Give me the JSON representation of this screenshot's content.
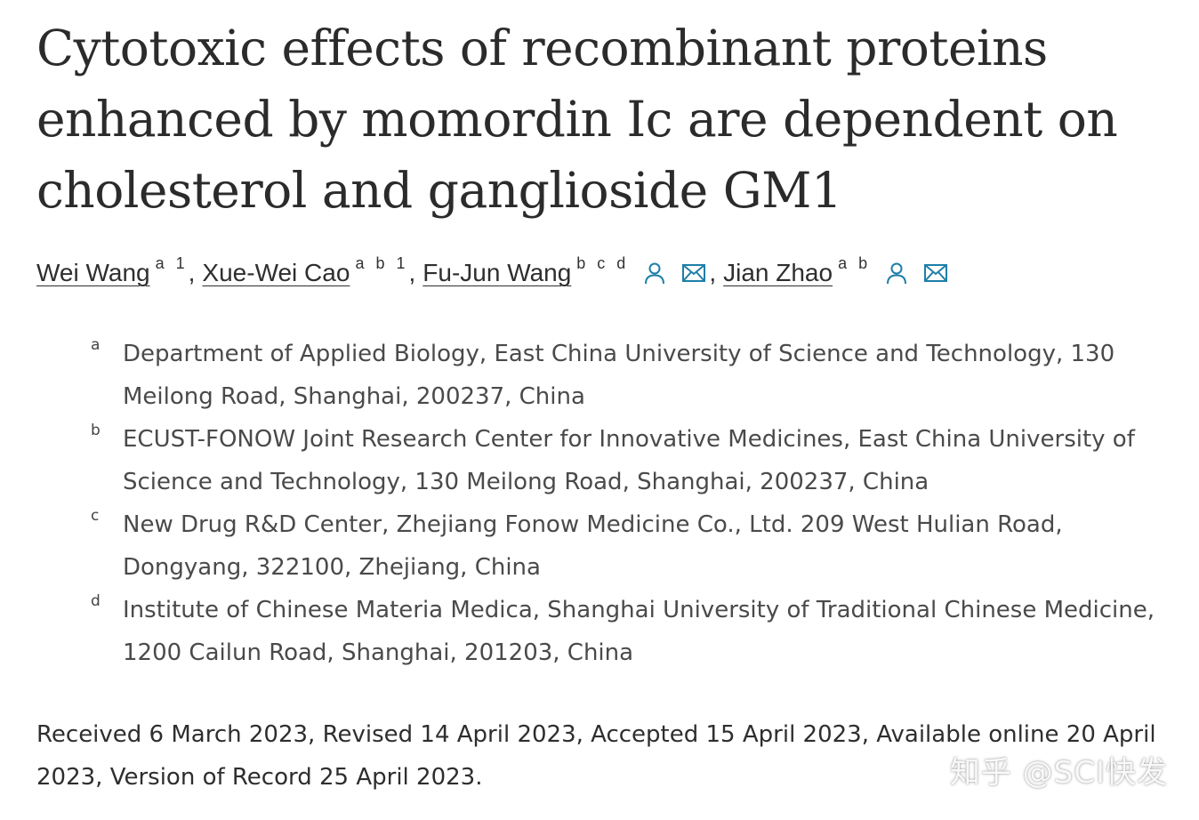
{
  "article": {
    "title_lines": [
      "Cytotoxic effects of recombinant proteins",
      "enhanced by momordin Ic are dependent on",
      "cholesterol and ganglioside GM1"
    ]
  },
  "authors": [
    {
      "name": "Wei Wang",
      "sup": "a 1",
      "sep": ",",
      "icons": []
    },
    {
      "name": "Xue-Wei Cao",
      "sup": "a b 1",
      "sep": ",",
      "icons": []
    },
    {
      "name": "Fu-Jun Wang",
      "sup": "b c d",
      "sep": ",",
      "icons": [
        "person-icon",
        "envelope-icon"
      ]
    },
    {
      "name": "Jian Zhao",
      "sup": "a b",
      "sep": "",
      "icons": [
        "person-icon",
        "envelope-icon"
      ]
    }
  ],
  "affiliations": [
    {
      "label": "a",
      "lines": [
        "Department of Applied Biology, East China University of Science and Technology, 130",
        "Meilong Road, Shanghai, 200237, China"
      ]
    },
    {
      "label": "b",
      "lines": [
        "ECUST-FONOW Joint Research Center for Innovative Medicines, East China University of",
        "Science and Technology, 130 Meilong Road, Shanghai, 200237, China"
      ]
    },
    {
      "label": "c",
      "lines": [
        "New Drug R&D Center, Zhejiang Fonow Medicine Co., Ltd. 209 West Hulian Road,",
        "Dongyang, 322100, Zhejiang, China"
      ]
    },
    {
      "label": "d",
      "lines": [
        "Institute of Chinese Materia Medica, Shanghai University of Traditional Chinese Medicine,",
        "1200 Cailun Road, Shanghai, 201203, China"
      ]
    }
  ],
  "history": {
    "lines": [
      "Received 6 March 2023, Revised 14 April 2023, Accepted 15 April 2023, Available online 20 April",
      "2023, Version of Record 25 April 2023."
    ]
  },
  "watermark": "知乎 @SCI快发",
  "colors": {
    "text": "#2e2e2e",
    "icon_accent": "#1e7fa8"
  }
}
